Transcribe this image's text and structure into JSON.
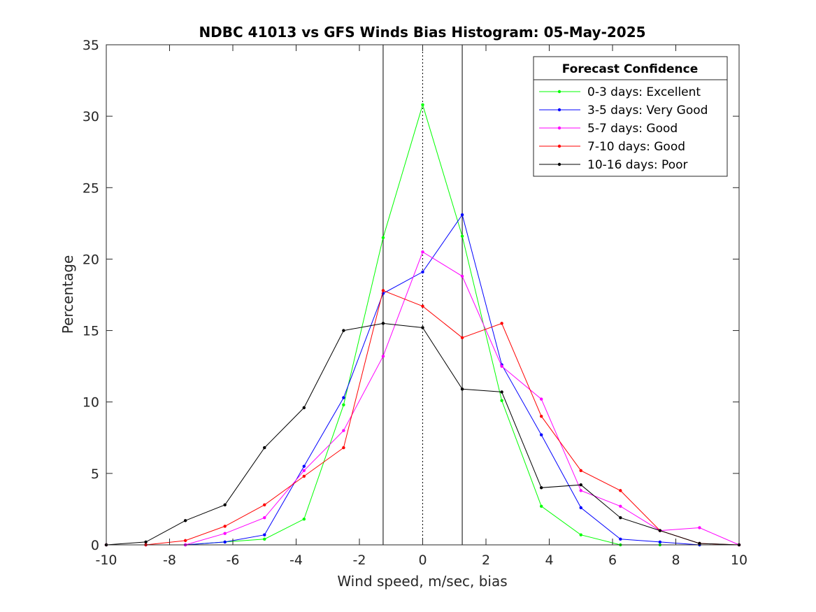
{
  "chart_data": {
    "type": "line",
    "title": "NDBC 41013 vs GFS Winds Bias Histogram: 05-May-2025",
    "xlabel": "Wind speed, m/sec, bias",
    "ylabel": "Percentage",
    "xlim": [
      -10,
      10
    ],
    "ylim": [
      0,
      35
    ],
    "xticks": [
      -10,
      -8,
      -6,
      -4,
      -2,
      0,
      2,
      4,
      6,
      8,
      10
    ],
    "yticks": [
      0,
      5,
      10,
      15,
      20,
      25,
      30,
      35
    ],
    "grid": false,
    "x": [
      -10,
      -8.75,
      -7.5,
      -6.25,
      -5,
      -3.75,
      -2.5,
      -1.25,
      0,
      1.25,
      2.5,
      3.75,
      5,
      6.25,
      7.5,
      8.75,
      10
    ],
    "reference_lines": [
      {
        "x": -1.25,
        "style": "solid",
        "color": "#000000"
      },
      {
        "x": 0,
        "style": "dotted",
        "color": "#000000"
      },
      {
        "x": 1.25,
        "style": "solid",
        "color": "#000000"
      }
    ],
    "legend": {
      "title": "Forecast Confidence",
      "position": "top-right"
    },
    "series": [
      {
        "name": "0-3 days: Excellent",
        "color": "#00ff00",
        "values": [
          0,
          0,
          0,
          0.2,
          0.4,
          1.8,
          9.8,
          21.5,
          30.8,
          21.6,
          10.1,
          2.7,
          0.7,
          0,
          0,
          0,
          0
        ]
      },
      {
        "name": "3-5 days: Very Good",
        "color": "#0000ff",
        "values": [
          0,
          0,
          0,
          0.2,
          0.7,
          5.5,
          10.3,
          17.6,
          19.1,
          23.1,
          12.6,
          7.7,
          2.6,
          0.4,
          0.2,
          0,
          0
        ]
      },
      {
        "name": "5-7 days: Good",
        "color": "#ff00ff",
        "values": [
          0,
          0,
          0,
          0.8,
          1.9,
          5.2,
          8.0,
          13.2,
          20.5,
          18.8,
          12.5,
          10.2,
          3.8,
          2.7,
          1.0,
          1.2,
          0
        ]
      },
      {
        "name": "7-10 days: Good",
        "color": "#ff0000",
        "values": [
          0,
          0,
          0.3,
          1.3,
          2.8,
          4.8,
          6.8,
          17.8,
          16.7,
          14.5,
          15.5,
          9.0,
          5.2,
          3.8,
          1.0,
          0.1,
          0
        ]
      },
      {
        "name": "10-16 days: Poor",
        "color": "#000000",
        "values": [
          0,
          0.2,
          1.7,
          2.8,
          6.8,
          9.6,
          15.0,
          15.5,
          15.2,
          10.9,
          10.7,
          4.0,
          4.2,
          1.9,
          1.0,
          0.1,
          0
        ]
      }
    ]
  }
}
